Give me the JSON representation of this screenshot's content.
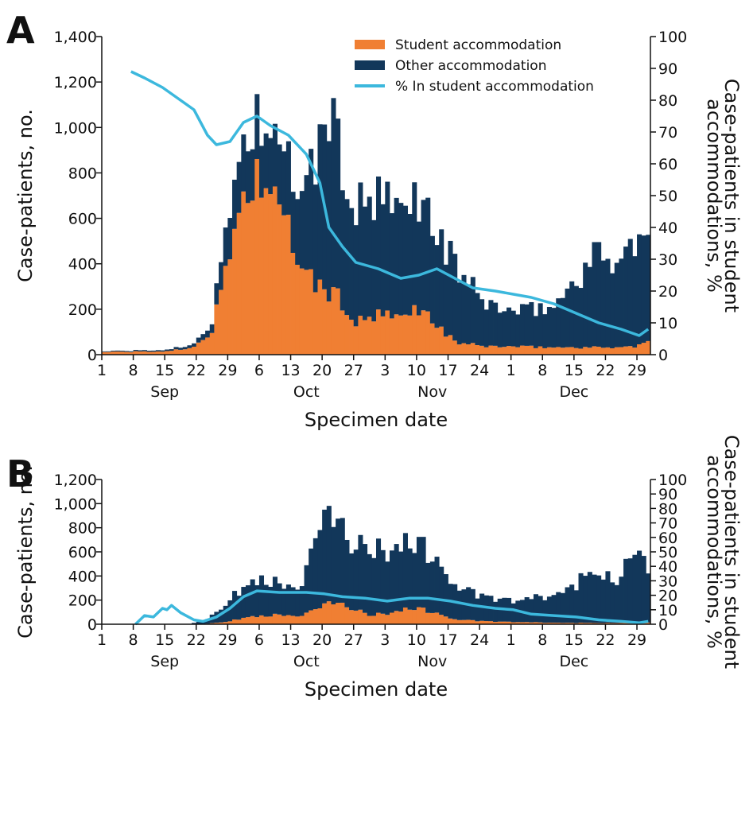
{
  "figure": {
    "legend": {
      "student": "Student accommodation",
      "other": "Other accommodation",
      "pct": "% In student accommodation"
    },
    "colors": {
      "student": "#f07f33",
      "other": "#12375a",
      "pct": "#3cb8dd"
    }
  },
  "chart_data": [
    {
      "panel": "A",
      "type": "bar",
      "stacked": true,
      "title": "",
      "xlabel": "Specimen date",
      "ylabel": "Case-patients, no.",
      "y2label_line1": "Case-patients in student",
      "y2label_line2": "accommodations, %",
      "x_tick_labels": [
        "1",
        "8",
        "15",
        "22",
        "29",
        "6",
        "13",
        "20",
        "27",
        "3",
        "10",
        "17",
        "24",
        "1",
        "8",
        "15",
        "22",
        "29"
      ],
      "month_labels": [
        "Sep",
        "Oct",
        "Nov",
        "Dec"
      ],
      "ylim": [
        0,
        1400
      ],
      "y_ticks": [
        "0",
        "200",
        "400",
        "600",
        "800",
        "1,000",
        "1,200",
        "1,400"
      ],
      "y2lim": [
        0,
        100
      ],
      "y2_ticks": [
        "0",
        "10",
        "20",
        "30",
        "40",
        "50",
        "60",
        "70",
        "80",
        "90",
        "100"
      ],
      "legend_position": "top-right",
      "x_range": [
        "2020-09-01",
        "2020-12-31"
      ],
      "series": [
        {
          "name": "Student accommodation",
          "knots": [
            [
              "2020-09-01",
              12
            ],
            [
              "2020-09-14",
              14
            ],
            [
              "2020-09-20",
              28
            ],
            [
              "2020-09-25",
              100
            ],
            [
              "2020-09-29",
              460
            ],
            [
              "2020-10-01",
              640
            ],
            [
              "2020-10-04",
              780
            ],
            [
              "2020-10-07",
              760
            ],
            [
              "2020-10-10",
              600
            ],
            [
              "2020-10-13",
              500
            ],
            [
              "2020-10-16",
              340
            ],
            [
              "2020-10-19",
              300
            ],
            [
              "2020-10-23",
              250
            ],
            [
              "2020-10-27",
              140
            ],
            [
              "2020-11-01",
              170
            ],
            [
              "2020-11-06",
              160
            ],
            [
              "2020-11-10",
              210
            ],
            [
              "2020-11-13",
              150
            ],
            [
              "2020-11-18",
              55
            ],
            [
              "2020-11-24",
              38
            ],
            [
              "2020-12-01",
              35
            ],
            [
              "2020-12-10",
              32
            ],
            [
              "2020-12-20",
              32
            ],
            [
              "2020-12-28",
              35
            ],
            [
              "2020-12-31",
              55
            ]
          ]
        },
        {
          "name": "Other accommodation",
          "knots": [
            [
              "2020-09-01",
              3
            ],
            [
              "2020-09-14",
              6
            ],
            [
              "2020-09-20",
              12
            ],
            [
              "2020-09-25",
              40
            ],
            [
              "2020-09-29",
              200
            ],
            [
              "2020-10-01",
              230
            ],
            [
              "2020-10-04",
              260
            ],
            [
              "2020-10-07",
              250
            ],
            [
              "2020-10-10",
              240
            ],
            [
              "2020-10-13",
              300
            ],
            [
              "2020-10-16",
              380
            ],
            [
              "2020-10-19",
              620
            ],
            [
              "2020-10-21",
              830
            ],
            [
              "2020-10-23",
              640
            ],
            [
              "2020-10-27",
              500
            ],
            [
              "2020-11-01",
              500
            ],
            [
              "2020-11-06",
              460
            ],
            [
              "2020-11-10",
              500
            ],
            [
              "2020-11-13",
              420
            ],
            [
              "2020-11-18",
              340
            ],
            [
              "2020-11-24",
              200
            ],
            [
              "2020-12-01",
              150
            ],
            [
              "2020-12-10",
              180
            ],
            [
              "2020-12-15",
              300
            ],
            [
              "2020-12-20",
              420
            ],
            [
              "2020-12-24",
              380
            ],
            [
              "2020-12-28",
              450
            ],
            [
              "2020-12-31",
              430
            ]
          ]
        },
        {
          "name": "% In student accommodation",
          "axis": "right",
          "points": [
            [
              "2020-09-07",
              89
            ],
            [
              "2020-09-10",
              87
            ],
            [
              "2020-09-14",
              84
            ],
            [
              "2020-09-18",
              80
            ],
            [
              "2020-09-21",
              77
            ],
            [
              "2020-09-24",
              69
            ],
            [
              "2020-09-26",
              66
            ],
            [
              "2020-09-29",
              67
            ],
            [
              "2020-10-02",
              73
            ],
            [
              "2020-10-05",
              75
            ],
            [
              "2020-10-08",
              72
            ],
            [
              "2020-10-12",
              69
            ],
            [
              "2020-10-16",
              63
            ],
            [
              "2020-10-19",
              54
            ],
            [
              "2020-10-21",
              40
            ],
            [
              "2020-10-24",
              34
            ],
            [
              "2020-10-27",
              29
            ],
            [
              "2020-11-01",
              27
            ],
            [
              "2020-11-06",
              24
            ],
            [
              "2020-11-10",
              25
            ],
            [
              "2020-11-14",
              27
            ],
            [
              "2020-11-18",
              24
            ],
            [
              "2020-11-22",
              21
            ],
            [
              "2020-11-27",
              20
            ],
            [
              "2020-12-01",
              19
            ],
            [
              "2020-12-05",
              18
            ],
            [
              "2020-12-10",
              16
            ],
            [
              "2020-12-15",
              13
            ],
            [
              "2020-12-20",
              10
            ],
            [
              "2020-12-25",
              8
            ],
            [
              "2020-12-29",
              6
            ],
            [
              "2020-12-31",
              8
            ]
          ]
        }
      ]
    },
    {
      "panel": "B",
      "type": "bar",
      "stacked": true,
      "title": "",
      "xlabel": "Specimen date",
      "ylabel": "Case-patients, no.",
      "y2label_line1": "Case-patients in student",
      "y2label_line2": "accommodations, %",
      "x_tick_labels": [
        "1",
        "8",
        "15",
        "22",
        "29",
        "6",
        "13",
        "20",
        "27",
        "3",
        "10",
        "17",
        "24",
        "1",
        "8",
        "15",
        "22",
        "29"
      ],
      "month_labels": [
        "Sep",
        "Oct",
        "Nov",
        "Dec"
      ],
      "ylim": [
        0,
        1200
      ],
      "y_ticks": [
        "0",
        "200",
        "400",
        "600",
        "800",
        "1,000",
        "1,200"
      ],
      "y2lim": [
        0,
        100
      ],
      "y2_ticks": [
        "0",
        "10",
        "20",
        "30",
        "40",
        "50",
        "60",
        "70",
        "80",
        "90",
        "100"
      ],
      "x_range": [
        "2020-09-01",
        "2020-12-31"
      ],
      "series": [
        {
          "name": "Student accommodation",
          "knots": [
            [
              "2020-09-01",
              0
            ],
            [
              "2020-09-20",
              0
            ],
            [
              "2020-09-24",
              5
            ],
            [
              "2020-09-29",
              25
            ],
            [
              "2020-10-03",
              60
            ],
            [
              "2020-10-06",
              75
            ],
            [
              "2020-10-10",
              75
            ],
            [
              "2020-10-15",
              70
            ],
            [
              "2020-10-19",
              130
            ],
            [
              "2020-10-22",
              190
            ],
            [
              "2020-10-26",
              140
            ],
            [
              "2020-10-30",
              70
            ],
            [
              "2020-11-04",
              100
            ],
            [
              "2020-11-09",
              140
            ],
            [
              "2020-11-13",
              100
            ],
            [
              "2020-11-18",
              40
            ],
            [
              "2020-11-24",
              25
            ],
            [
              "2020-12-01",
              18
            ],
            [
              "2020-12-10",
              12
            ],
            [
              "2020-12-20",
              10
            ],
            [
              "2020-12-28",
              12
            ],
            [
              "2020-12-31",
              15
            ]
          ]
        },
        {
          "name": "Other accommodation",
          "knots": [
            [
              "2020-09-01",
              0
            ],
            [
              "2020-09-20",
              0
            ],
            [
              "2020-09-24",
              40
            ],
            [
              "2020-09-29",
              180
            ],
            [
              "2020-10-03",
              270
            ],
            [
              "2020-10-06",
              340
            ],
            [
              "2020-10-10",
              240
            ],
            [
              "2020-10-15",
              250
            ],
            [
              "2020-10-19",
              640
            ],
            [
              "2020-10-22",
              740
            ],
            [
              "2020-10-26",
              560
            ],
            [
              "2020-10-30",
              520
            ],
            [
              "2020-11-04",
              540
            ],
            [
              "2020-11-09",
              560
            ],
            [
              "2020-11-13",
              460
            ],
            [
              "2020-11-18",
              280
            ],
            [
              "2020-11-24",
              200
            ],
            [
              "2020-12-01",
              170
            ],
            [
              "2020-12-10",
              220
            ],
            [
              "2020-12-15",
              330
            ],
            [
              "2020-12-20",
              430
            ],
            [
              "2020-12-24",
              380
            ],
            [
              "2020-12-28",
              560
            ],
            [
              "2020-12-31",
              450
            ]
          ]
        },
        {
          "name": "% In student accommodation",
          "axis": "right",
          "points": [
            [
              "2020-09-08",
              0
            ],
            [
              "2020-09-10",
              6
            ],
            [
              "2020-09-12",
              5
            ],
            [
              "2020-09-14",
              11
            ],
            [
              "2020-09-15",
              10
            ],
            [
              "2020-09-16",
              13
            ],
            [
              "2020-09-18",
              8
            ],
            [
              "2020-09-21",
              3
            ],
            [
              "2020-09-23",
              2
            ],
            [
              "2020-09-26",
              5
            ],
            [
              "2020-09-29",
              11
            ],
            [
              "2020-10-02",
              19
            ],
            [
              "2020-10-05",
              23
            ],
            [
              "2020-10-10",
              22
            ],
            [
              "2020-10-16",
              22
            ],
            [
              "2020-10-20",
              21
            ],
            [
              "2020-10-24",
              19
            ],
            [
              "2020-10-29",
              18
            ],
            [
              "2020-11-03",
              16
            ],
            [
              "2020-11-08",
              18
            ],
            [
              "2020-11-12",
              18
            ],
            [
              "2020-11-17",
              16
            ],
            [
              "2020-11-22",
              13
            ],
            [
              "2020-11-27",
              11
            ],
            [
              "2020-12-01",
              10
            ],
            [
              "2020-12-05",
              7
            ],
            [
              "2020-12-10",
              6
            ],
            [
              "2020-12-15",
              5
            ],
            [
              "2020-12-20",
              3
            ],
            [
              "2020-12-25",
              2
            ],
            [
              "2020-12-29",
              1
            ],
            [
              "2020-12-31",
              2
            ]
          ]
        }
      ]
    }
  ]
}
